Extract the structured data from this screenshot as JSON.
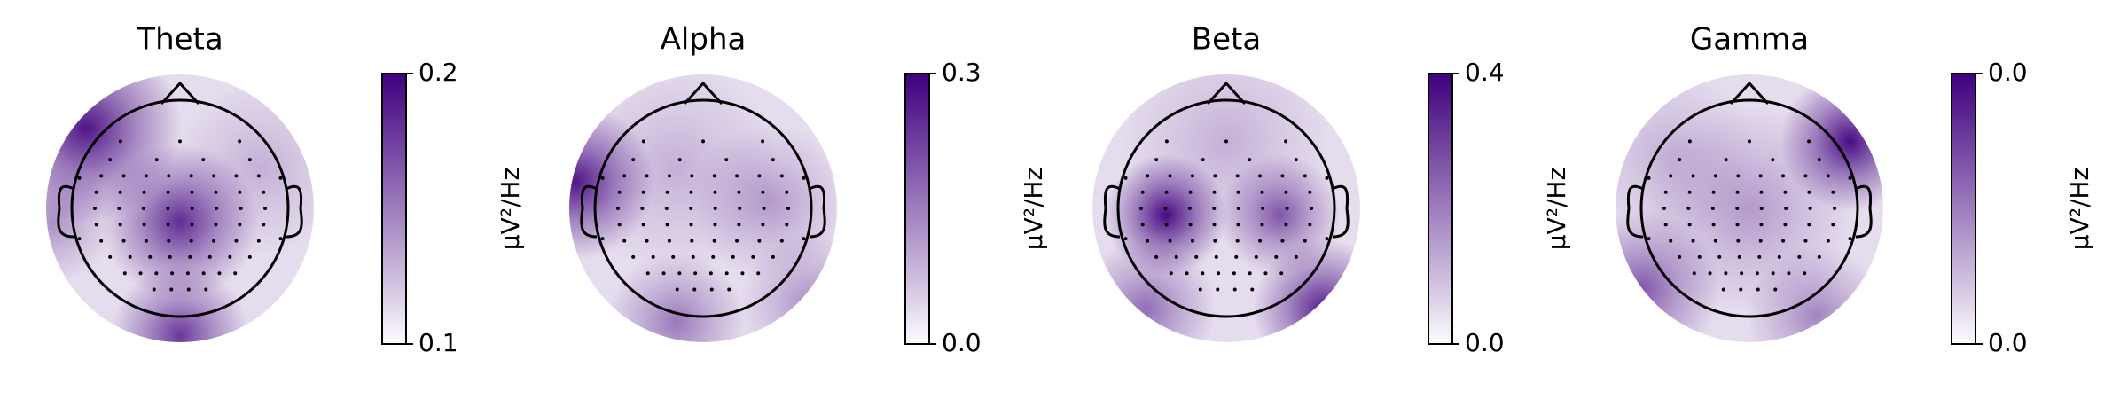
{
  "chart_data": [
    {
      "type": "topomap",
      "title": "Theta",
      "colorbar_label": "μV²/Hz",
      "ylim": [
        0.1,
        0.2
      ],
      "yticks": [
        0.1,
        0.2
      ],
      "colormap": [
        "#fcfbfd",
        "#3f007d"
      ]
    },
    {
      "type": "topomap",
      "title": "Alpha",
      "colorbar_label": "μV²/Hz",
      "ylim": [
        0.0,
        0.3
      ],
      "yticks": [
        {
          "value": 0.0,
          "label": "0.0"
        },
        0.3
      ],
      "colormap": [
        "#fcfbfd",
        "#3f007d"
      ]
    },
    {
      "type": "topomap",
      "title": "Beta",
      "colorbar_label": "μV²/Hz",
      "ylim": [
        0.0,
        0.4
      ],
      "yticks": [
        {
          "value": 0.0,
          "label": "0.0"
        },
        0.4
      ],
      "colormap": [
        "#fcfbfd",
        "#3f007d"
      ]
    },
    {
      "type": "topomap",
      "title": "Gamma",
      "colorbar_label": "μV²/Hz",
      "ylim": [
        0.0,
        0.04
      ],
      "yticks": [
        {
          "value": 0.0,
          "label": "0.0"
        },
        {
          "value": 0.04,
          "label": "0.0"
        }
      ],
      "colormap": [
        "#fcfbfd",
        "#3f007d"
      ]
    }
  ]
}
